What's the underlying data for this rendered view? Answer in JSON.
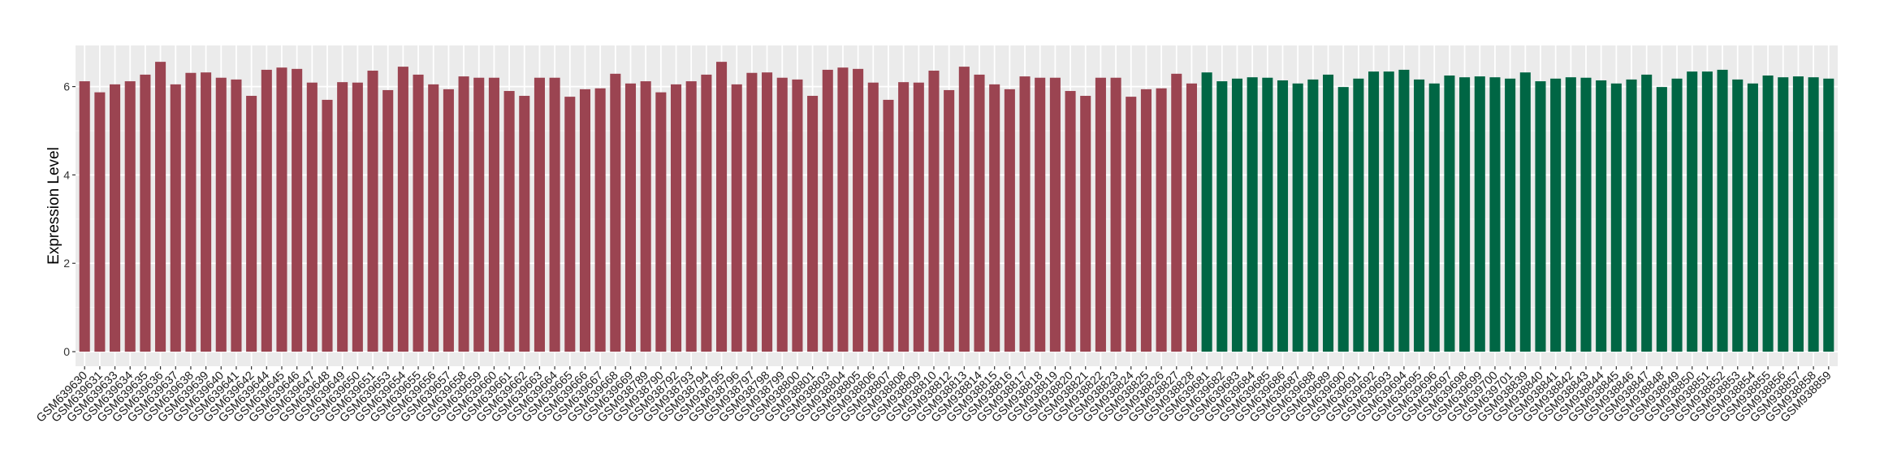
{
  "chart_data": {
    "type": "bar",
    "title": "",
    "xlabel": "",
    "ylabel": "Expression Level",
    "ylim": [
      -0.33,
      6.93
    ],
    "yticks": [
      0,
      2,
      4,
      6
    ],
    "grid": true,
    "panel_background": "#EBEBEB",
    "legend": "none",
    "series": [
      {
        "color": "#9B4451",
        "categories": [
          "GSM639630",
          "GSM639631",
          "GSM639633",
          "GSM639634",
          "GSM639635",
          "GSM639636",
          "GSM639637",
          "GSM639638",
          "GSM639639",
          "GSM639640",
          "GSM639641",
          "GSM639642",
          "GSM639644",
          "GSM639645",
          "GSM639646",
          "GSM639647",
          "GSM639648",
          "GSM639649",
          "GSM639650",
          "GSM639651",
          "GSM639653",
          "GSM639654",
          "GSM639655",
          "GSM639656",
          "GSM639657",
          "GSM639658",
          "GSM639659",
          "GSM639660",
          "GSM639661",
          "GSM639662",
          "GSM639663",
          "GSM639664",
          "GSM639665",
          "GSM639666",
          "GSM639667",
          "GSM639668",
          "GSM639669",
          "GSM938789",
          "GSM938790",
          "GSM938792",
          "GSM938793",
          "GSM938794",
          "GSM938795",
          "GSM938796",
          "GSM938797",
          "GSM938798",
          "GSM938799",
          "GSM938800",
          "GSM938801",
          "GSM938803",
          "GSM938804",
          "GSM938805",
          "GSM938806",
          "GSM938807",
          "GSM938808",
          "GSM938809",
          "GSM938810",
          "GSM938812",
          "GSM938813",
          "GSM938814",
          "GSM938815",
          "GSM938816",
          "GSM938817",
          "GSM938818",
          "GSM938819",
          "GSM938820",
          "GSM938821",
          "GSM938822",
          "GSM938823",
          "GSM938824",
          "GSM938825",
          "GSM938826",
          "GSM938827",
          "GSM938828"
        ],
        "values": [
          6.12,
          5.87,
          6.05,
          6.12,
          6.27,
          6.56,
          6.05,
          6.31,
          6.32,
          6.2,
          6.16,
          5.79,
          6.38,
          6.43,
          6.4,
          6.09,
          5.7,
          6.1,
          6.09,
          6.36,
          5.92,
          6.45,
          6.27,
          6.05,
          5.94,
          6.23,
          6.2,
          6.2,
          5.9,
          5.79,
          6.2,
          6.2,
          5.77,
          5.94,
          5.96,
          6.29,
          6.07,
          6.12,
          5.87,
          6.05,
          6.12,
          6.27,
          6.56,
          6.05,
          6.31,
          6.32,
          6.2,
          6.16,
          5.79,
          6.38,
          6.43,
          6.4,
          6.09,
          5.7,
          6.1,
          6.09,
          6.36,
          5.92,
          6.45,
          6.27,
          6.05,
          5.94,
          6.23,
          6.2,
          6.2,
          5.9,
          5.79,
          6.2,
          6.2,
          5.77,
          5.94,
          5.96,
          6.29,
          6.07
        ]
      },
      {
        "color": "#006644",
        "categories": [
          "GSM639681",
          "GSM639682",
          "GSM639683",
          "GSM639684",
          "GSM639685",
          "GSM639686",
          "GSM639687",
          "GSM639688",
          "GSM639689",
          "GSM639690",
          "GSM639691",
          "GSM639692",
          "GSM639693",
          "GSM639694",
          "GSM639695",
          "GSM639696",
          "GSM639697",
          "GSM639698",
          "GSM639699",
          "GSM639700",
          "GSM639701",
          "GSM938839",
          "GSM938840",
          "GSM938841",
          "GSM938842",
          "GSM938843",
          "GSM938844",
          "GSM938845",
          "GSM938846",
          "GSM938847",
          "GSM938848",
          "GSM938849",
          "GSM938850",
          "GSM938851",
          "GSM938852",
          "GSM938853",
          "GSM938854",
          "GSM938855",
          "GSM938856",
          "GSM938857",
          "GSM938858",
          "GSM938859"
        ],
        "values": [
          6.32,
          6.12,
          6.18,
          6.21,
          6.2,
          6.14,
          6.07,
          6.16,
          6.27,
          5.99,
          6.18,
          6.34,
          6.34,
          6.38,
          6.16,
          6.07,
          6.25,
          6.21,
          6.23,
          6.21,
          6.18,
          6.32,
          6.12,
          6.18,
          6.21,
          6.2,
          6.14,
          6.07,
          6.16,
          6.27,
          5.99,
          6.18,
          6.34,
          6.34,
          6.38,
          6.16,
          6.07,
          6.25,
          6.21,
          6.23,
          6.21,
          6.18
        ]
      }
    ]
  }
}
